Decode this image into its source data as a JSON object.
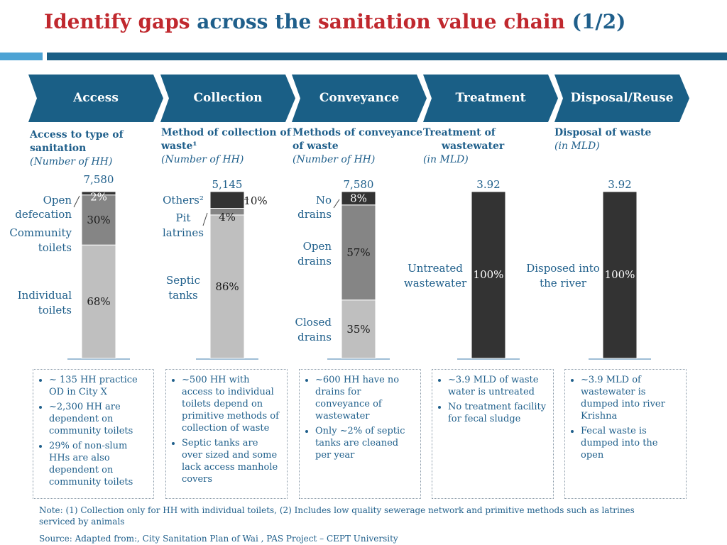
{
  "title": {
    "part1": "Identify gaps",
    "part2": " across the ",
    "part3": "sanitation value chain",
    "part4": " (1/2)"
  },
  "chain": [
    "Access",
    "Collection",
    "Conveyance",
    "Treatment",
    "Disposal/Reuse"
  ],
  "headers": [
    {
      "line1": "Access to type of",
      "line2": "sanitation",
      "sub": "(Number of HH)"
    },
    {
      "line1": "Method of collection of",
      "line2": "waste¹",
      "sub": "(Number of HH)"
    },
    {
      "line1": "Methods of conveyance",
      "line2": "of waste",
      "sub": "(Number of HH)"
    },
    {
      "line1": "Treatment of",
      "line2": "wastewater",
      "sub": "(in MLD)"
    },
    {
      "line1": "Disposal of waste",
      "line2": "",
      "sub": "(in MLD)"
    }
  ],
  "colors": {
    "dark": "#333333",
    "mid": "#858585",
    "light": "#bfbfbf",
    "chevron": "#1a5f86"
  },
  "chart_data": [
    {
      "type": "bar",
      "stacked": true,
      "total_label": "7,580",
      "segments": [
        {
          "name": "Individual toilets",
          "value": 68,
          "label": "68%",
          "shade": "light"
        },
        {
          "name": "Community toilets",
          "value": 30,
          "label": "30%",
          "shade": "mid"
        },
        {
          "name": "Open defecation",
          "value": 2,
          "label": "2%",
          "shade": "dark"
        }
      ]
    },
    {
      "type": "bar",
      "stacked": true,
      "total_label": "5,145",
      "segments": [
        {
          "name": "Septic tanks",
          "value": 86,
          "label": "86%",
          "shade": "light"
        },
        {
          "name": "Pit latrines",
          "value": 4,
          "label": "4%",
          "shade": "mid"
        },
        {
          "name": "Others²",
          "value": 10,
          "label": "10%",
          "shade": "dark"
        }
      ]
    },
    {
      "type": "bar",
      "stacked": true,
      "total_label": "7,580",
      "segments": [
        {
          "name": "Closed drains",
          "value": 35,
          "label": "35%",
          "shade": "light"
        },
        {
          "name": "Open drains",
          "value": 57,
          "label": "57%",
          "shade": "mid"
        },
        {
          "name": "No drains",
          "value": 8,
          "label": "8%",
          "shade": "dark"
        }
      ]
    },
    {
      "type": "bar",
      "stacked": true,
      "total_label": "3.92",
      "segments": [
        {
          "name": "Untreated wastewater",
          "value": 100,
          "label": "100%",
          "shade": "dark"
        }
      ]
    },
    {
      "type": "bar",
      "stacked": true,
      "total_label": "3.92",
      "segments": [
        {
          "name": "Disposed into the river",
          "value": 100,
          "label": "100%",
          "shade": "dark"
        }
      ]
    }
  ],
  "boxes": [
    [
      "~ 135 HH practice OD in City X",
      "~2,300 HH are dependent on community toilets",
      "29% of non-slum HHs are also dependent on community toilets"
    ],
    [
      "~500 HH with access to individual toilets depend on primitive methods of collection of waste",
      "Septic tanks are over sized and some lack access manhole covers"
    ],
    [
      "~600 HH have no drains for conveyance of wastewater",
      "Only ~2% of septic tanks are cleaned per year"
    ],
    [
      "~3.9 MLD of waste water is untreated",
      "No treatment facility for fecal sludge"
    ],
    [
      "~3.9 MLD of wastewater is dumped into river Krishna",
      "Fecal waste is dumped into the open"
    ]
  ],
  "note": "Note: (1) Collection only for HH with individual toilets, (2) Includes low quality sewerage network and primitive methods such as latrines serviced by animals",
  "source": "Source: Adapted from:, City Sanitation Plan of Wai , PAS Project – CEPT University"
}
